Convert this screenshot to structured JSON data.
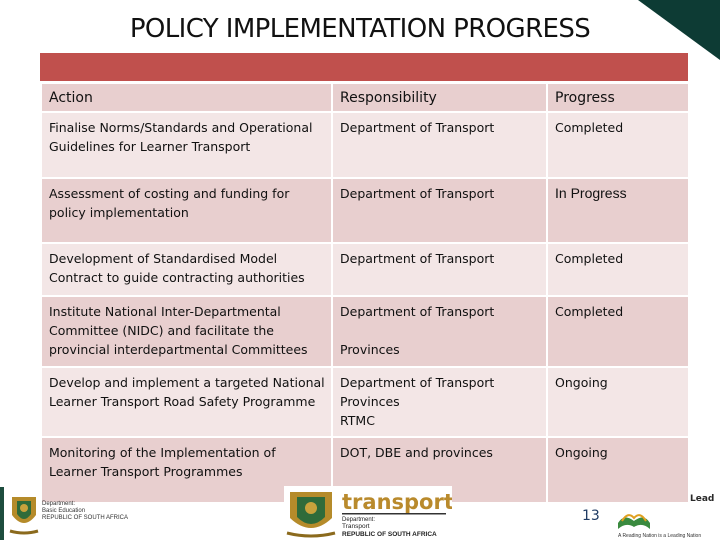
{
  "slide": {
    "title": "POLICY IMPLEMENTATION PROGRESS",
    "page_number": "13",
    "colors": {
      "header_band": "#c0504d",
      "row_dark": "#e8cfcf",
      "row_light": "#f3e6e6",
      "corner": "#0d3b34"
    }
  },
  "table": {
    "headers": {
      "action": "Action",
      "responsibility": "Responsibility",
      "progress": "Progress"
    },
    "rows": [
      {
        "action": "Finalise Norms/Standards and Operational Guidelines for Learner Transport",
        "responsibility": "Department of Transport",
        "progress": "Completed"
      },
      {
        "action": "Assessment of costing and funding for policy implementation",
        "responsibility": "Department of Transport",
        "progress": "In Progress"
      },
      {
        "action": "Development of Standardised Model Contract to guide contracting authorities",
        "responsibility": "Department of Transport",
        "progress": "Completed"
      },
      {
        "action": "Institute National Inter-Departmental Committee (NIDC) and facilitate the provincial interdepartmental Committees",
        "responsibility": "Department of Transport",
        "responsibility_2": "Provinces",
        "progress": "Completed"
      },
      {
        "action": "Develop and implement a targeted National Learner Transport Road Safety Programme",
        "responsibility": "Department of Transport",
        "responsibility_2": "Provinces",
        "responsibility_3": "RTMC",
        "progress": "Ongoing"
      },
      {
        "action": "Monitoring of the Implementation of  Learner Transport Programmes",
        "responsibility": "DOT, DBE and provinces",
        "progress": "Ongoing"
      }
    ]
  },
  "logos": {
    "dbe": {
      "line1": "Department:",
      "line2": "Basic Education",
      "line3": "REPUBLIC OF SOUTH AFRICA",
      "icon": "coat-of-arms-icon"
    },
    "transport": {
      "word": "transport",
      "line1": "Department:",
      "line2": "Transport",
      "line3": "REPUBLIC OF SOUTH AFRICA",
      "icon": "coat-of-arms-icon"
    },
    "leading": {
      "lead_word": "Lead",
      "tagline": "A Reading Nation is a Leading Nation"
    }
  }
}
